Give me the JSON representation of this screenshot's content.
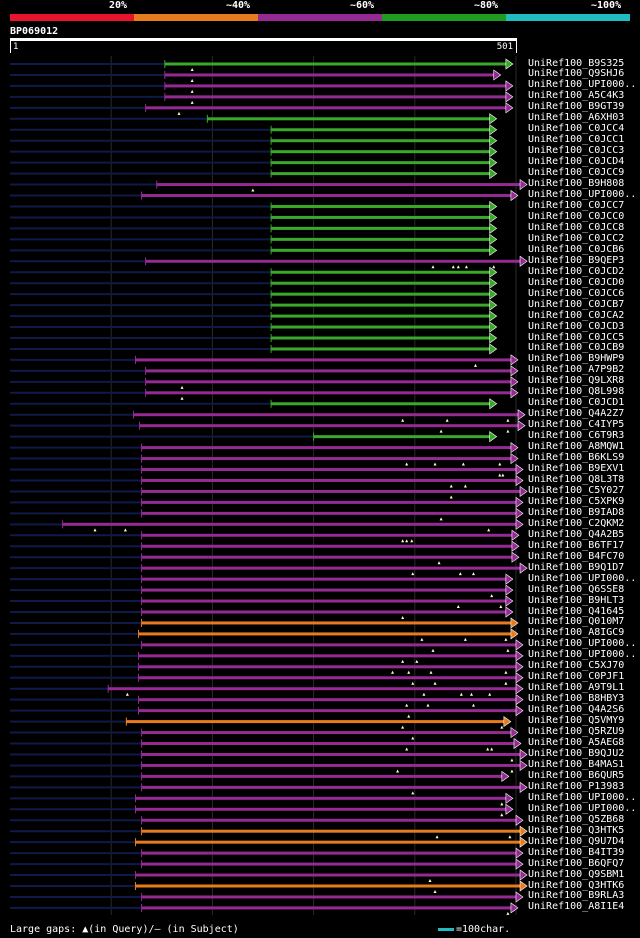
{
  "scale": {
    "segments": [
      {
        "label": "20%",
        "color": "#e8132c"
      },
      {
        "label": "~40%",
        "color": "#e77b1d"
      },
      {
        "label": "~60%",
        "color": "#952a93"
      },
      {
        "label": "~80%",
        "color": "#1f9b1f"
      },
      {
        "label": "~100%",
        "color": "#1fbdc0"
      }
    ]
  },
  "query": {
    "id": "BP069012",
    "start": "1",
    "end": "501",
    "length": 501
  },
  "colors": {
    "orange": "#e77b1d",
    "purple": "#952a93",
    "green": "#3aa82a",
    "navy": "#0f1a4a"
  },
  "hits": [
    {
      "name": "UniRef100_B9S325",
      "color": "green",
      "start": 153,
      "end": 490,
      "marks": [
        180
      ]
    },
    {
      "name": "UniRef100_Q9SHJ6",
      "color": "purple",
      "start": 153,
      "end": 478,
      "marks": [
        180
      ]
    },
    {
      "name": "UniRef100_UPI000..",
      "color": "purple",
      "start": 153,
      "end": 490,
      "marks": [
        180
      ]
    },
    {
      "name": "UniRef100_A5C4K3",
      "color": "purple",
      "start": 153,
      "end": 490,
      "marks": [
        180
      ]
    },
    {
      "name": "UniRef100_B9GT39",
      "color": "purple",
      "start": 134,
      "end": 490,
      "marks": [
        167
      ]
    },
    {
      "name": "UniRef100_A6XH03",
      "color": "green",
      "start": 195,
      "end": 474,
      "marks": []
    },
    {
      "name": "UniRef100_C0JCC4",
      "color": "green",
      "start": 258,
      "end": 474,
      "marks": []
    },
    {
      "name": "UniRef100_C0JCC1",
      "color": "green",
      "start": 258,
      "end": 474,
      "marks": []
    },
    {
      "name": "UniRef100_C0JCC3",
      "color": "green",
      "start": 258,
      "end": 474,
      "marks": []
    },
    {
      "name": "UniRef100_C0JCD4",
      "color": "green",
      "start": 258,
      "end": 474,
      "marks": []
    },
    {
      "name": "UniRef100_C0JCC9",
      "color": "green",
      "start": 258,
      "end": 474,
      "marks": []
    },
    {
      "name": "UniRef100_B9H808",
      "color": "purple",
      "start": 145,
      "end": 504,
      "marks": [
        240
      ]
    },
    {
      "name": "UniRef100_UPI000..",
      "color": "purple",
      "start": 130,
      "end": 495,
      "marks": []
    },
    {
      "name": "UniRef100_C0JCC7",
      "color": "green",
      "start": 258,
      "end": 474,
      "marks": []
    },
    {
      "name": "UniRef100_C0JCC0",
      "color": "green",
      "start": 258,
      "end": 474,
      "marks": []
    },
    {
      "name": "UniRef100_C0JCC8",
      "color": "green",
      "start": 258,
      "end": 474,
      "marks": []
    },
    {
      "name": "UniRef100_C0JCC2",
      "color": "green",
      "start": 258,
      "end": 474,
      "marks": []
    },
    {
      "name": "UniRef100_C0JCB6",
      "color": "green",
      "start": 258,
      "end": 474,
      "marks": []
    },
    {
      "name": "UniRef100_B9QEP3",
      "color": "purple",
      "start": 134,
      "end": 504,
      "marks": [
        418,
        438,
        443,
        451,
        478
      ]
    },
    {
      "name": "UniRef100_C0JCD2",
      "color": "green",
      "start": 258,
      "end": 474,
      "marks": []
    },
    {
      "name": "UniRef100_C0JCD0",
      "color": "green",
      "start": 258,
      "end": 474,
      "marks": []
    },
    {
      "name": "UniRef100_C0JCC6",
      "color": "green",
      "start": 258,
      "end": 474,
      "marks": []
    },
    {
      "name": "UniRef100_C0JCB7",
      "color": "green",
      "start": 258,
      "end": 474,
      "marks": []
    },
    {
      "name": "UniRef100_C0JCA2",
      "color": "green",
      "start": 258,
      "end": 474,
      "marks": []
    },
    {
      "name": "UniRef100_C0JCD3",
      "color": "green",
      "start": 258,
      "end": 474,
      "marks": []
    },
    {
      "name": "UniRef100_C0JCC5",
      "color": "green",
      "start": 258,
      "end": 474,
      "marks": []
    },
    {
      "name": "UniRef100_C0JCB9",
      "color": "green",
      "start": 258,
      "end": 474,
      "marks": []
    },
    {
      "name": "UniRef100_B9HWP9",
      "color": "purple",
      "start": 124,
      "end": 495,
      "marks": [
        460
      ]
    },
    {
      "name": "UniRef100_A7P9B2",
      "color": "purple",
      "start": 134,
      "end": 495,
      "marks": []
    },
    {
      "name": "UniRef100_Q9LXR8",
      "color": "purple",
      "start": 134,
      "end": 495,
      "marks": [
        170
      ]
    },
    {
      "name": "UniRef100_Q8L998",
      "color": "purple",
      "start": 134,
      "end": 495,
      "marks": [
        170
      ]
    },
    {
      "name": "UniRef100_C0JCD1",
      "color": "green",
      "start": 258,
      "end": 474,
      "marks": []
    },
    {
      "name": "UniRef100_Q4A2Z7",
      "color": "purple",
      "start": 122,
      "end": 502,
      "marks": [
        388,
        432,
        492
      ]
    },
    {
      "name": "UniRef100_C4IYP5",
      "color": "purple",
      "start": 128,
      "end": 502,
      "marks": [
        426,
        492
      ]
    },
    {
      "name": "UniRef100_C6T9R3",
      "color": "green",
      "start": 300,
      "end": 474,
      "marks": []
    },
    {
      "name": "UniRef100_A8MQW1",
      "color": "purple",
      "start": 130,
      "end": 495,
      "marks": []
    },
    {
      "name": "UniRef100_B6KLS9",
      "color": "purple",
      "start": 130,
      "end": 495,
      "marks": [
        392,
        420,
        448,
        484
      ]
    },
    {
      "name": "UniRef100_B9EXV1",
      "color": "purple",
      "start": 130,
      "end": 500,
      "marks": [
        484,
        487
      ]
    },
    {
      "name": "UniRef100_Q8L3T8",
      "color": "purple",
      "start": 130,
      "end": 500,
      "marks": [
        436,
        450
      ]
    },
    {
      "name": "UniRef100_C5Y027",
      "color": "purple",
      "start": 130,
      "end": 504,
      "marks": [
        436
      ]
    },
    {
      "name": "UniRef100_C5XPK9",
      "color": "purple",
      "start": 130,
      "end": 500,
      "marks": []
    },
    {
      "name": "UniRef100_B9IAD8",
      "color": "purple",
      "start": 130,
      "end": 500,
      "marks": [
        426
      ]
    },
    {
      "name": "UniRef100_C2QKM2",
      "color": "purple",
      "start": 52,
      "end": 500,
      "marks": [
        84,
        114,
        473
      ]
    },
    {
      "name": "UniRef100_Q4A2B5",
      "color": "purple",
      "start": 130,
      "end": 496,
      "marks": [
        388,
        392,
        397
      ]
    },
    {
      "name": "UniRef100_B6TF17",
      "color": "purple",
      "start": 130,
      "end": 496,
      "marks": []
    },
    {
      "name": "UniRef100_B4FC70",
      "color": "purple",
      "start": 130,
      "end": 496,
      "marks": [
        424
      ]
    },
    {
      "name": "UniRef100_B9Q1D7",
      "color": "purple",
      "start": 130,
      "end": 504,
      "marks": [
        398,
        445,
        458
      ]
    },
    {
      "name": "UniRef100_UPI000..",
      "color": "purple",
      "start": 130,
      "end": 490,
      "marks": []
    },
    {
      "name": "UniRef100_Q6SSE8",
      "color": "purple",
      "start": 130,
      "end": 490,
      "marks": [
        476
      ]
    },
    {
      "name": "UniRef100_B9HLT3",
      "color": "purple",
      "start": 130,
      "end": 490,
      "marks": [
        443,
        485
      ]
    },
    {
      "name": "UniRef100_Q41645",
      "color": "purple",
      "start": 130,
      "end": 490,
      "marks": [
        388
      ]
    },
    {
      "name": "UniRef100_Q010M7",
      "color": "orange",
      "start": 130,
      "end": 495,
      "marks": []
    },
    {
      "name": "UniRef100_A8IGC9",
      "color": "orange",
      "start": 127,
      "end": 495,
      "marks": [
        407,
        450,
        490
      ]
    },
    {
      "name": "UniRef100_UPI000..",
      "color": "purple",
      "start": 130,
      "end": 500,
      "marks": [
        418,
        492
      ]
    },
    {
      "name": "UniRef100_UPI000..",
      "color": "purple",
      "start": 127,
      "end": 500,
      "marks": [
        388,
        402
      ]
    },
    {
      "name": "UniRef100_C5XJ70",
      "color": "purple",
      "start": 127,
      "end": 500,
      "marks": [
        378,
        394,
        416,
        490
      ]
    },
    {
      "name": "UniRef100_C0PJF1",
      "color": "purple",
      "start": 127,
      "end": 500,
      "marks": [
        398,
        420,
        490
      ]
    },
    {
      "name": "UniRef100_A9T9L1",
      "color": "purple",
      "start": 97,
      "end": 500,
      "marks": [
        116,
        409,
        446,
        456,
        474
      ]
    },
    {
      "name": "UniRef100_B8HBY3",
      "color": "purple",
      "start": 127,
      "end": 500,
      "marks": [
        392,
        413,
        458
      ]
    },
    {
      "name": "UniRef100_Q4A2S6",
      "color": "purple",
      "start": 127,
      "end": 500,
      "marks": [
        394
      ]
    },
    {
      "name": "UniRef100_Q5VMY9",
      "color": "orange",
      "start": 115,
      "end": 488,
      "marks": [
        388,
        486
      ]
    },
    {
      "name": "UniRef100_Q5RZU9",
      "color": "purple",
      "start": 130,
      "end": 495,
      "marks": [
        398
      ]
    },
    {
      "name": "UniRef100_A5AEG8",
      "color": "purple",
      "start": 130,
      "end": 498,
      "marks": [
        392,
        472,
        476
      ]
    },
    {
      "name": "UniRef100_B9QJU2",
      "color": "purple",
      "start": 130,
      "end": 504,
      "marks": [
        496
      ]
    },
    {
      "name": "UniRef100_B4MAS1",
      "color": "purple",
      "start": 130,
      "end": 504,
      "marks": [
        383,
        496
      ]
    },
    {
      "name": "UniRef100_B6QUR5",
      "color": "purple",
      "start": 130,
      "end": 486,
      "marks": []
    },
    {
      "name": "UniRef100_P13983",
      "color": "purple",
      "start": 130,
      "end": 504,
      "marks": [
        398
      ]
    },
    {
      "name": "UniRef100_UPI000..",
      "color": "purple",
      "start": 124,
      "end": 490,
      "marks": [
        486
      ]
    },
    {
      "name": "UniRef100_UPI000..",
      "color": "purple",
      "start": 124,
      "end": 490,
      "marks": [
        486
      ]
    },
    {
      "name": "UniRef100_Q5ZB68",
      "color": "purple",
      "start": 130,
      "end": 500,
      "marks": []
    },
    {
      "name": "UniRef100_Q3HTK5",
      "color": "orange",
      "start": 130,
      "end": 504,
      "marks": [
        422,
        494
      ]
    },
    {
      "name": "UniRef100_Q9U7D4",
      "color": "orange",
      "start": 124,
      "end": 504,
      "marks": []
    },
    {
      "name": "UniRef100_B4IT39",
      "color": "purple",
      "start": 130,
      "end": 500,
      "marks": []
    },
    {
      "name": "UniRef100_B6QFQ7",
      "color": "purple",
      "start": 130,
      "end": 500,
      "marks": []
    },
    {
      "name": "UniRef100_Q9SBM1",
      "color": "purple",
      "start": 124,
      "end": 504,
      "marks": [
        415
      ]
    },
    {
      "name": "UniRef100_Q3HTK6",
      "color": "orange",
      "start": 124,
      "end": 504,
      "marks": [
        420
      ]
    },
    {
      "name": "UniRef100_B9RLA3",
      "color": "purple",
      "start": 130,
      "end": 500,
      "marks": []
    },
    {
      "name": "UniRef100_A8I1E4",
      "color": "purple",
      "start": 130,
      "end": 495,
      "marks": [
        492
      ]
    }
  ],
  "legend": {
    "text": "Large gaps: ▲(in Query)/— (in Subject)",
    "scale_text": "=100char."
  }
}
